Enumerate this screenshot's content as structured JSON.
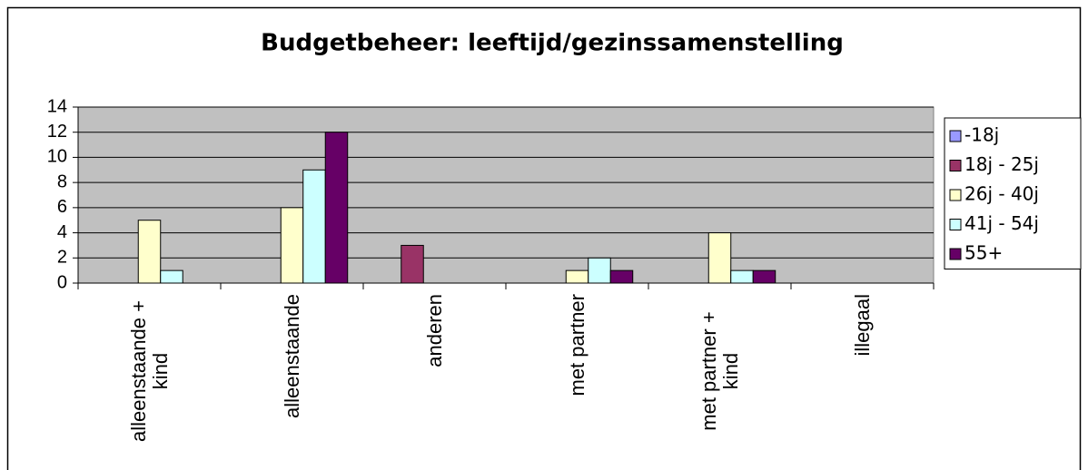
{
  "chart_data": {
    "type": "bar",
    "title": "Budgetbeheer: leeftijd/gezinssamenstelling",
    "categories": [
      "alleenstaande + kind",
      "alleenstaande",
      "anderen",
      "met partner",
      "met partner + kind",
      "illegaal"
    ],
    "series": [
      {
        "name": "-18j",
        "color": "#9999ff",
        "values": [
          0,
          0,
          0,
          0,
          0,
          0
        ]
      },
      {
        "name": "18j - 25j",
        "color": "#993366",
        "values": [
          0,
          0,
          3,
          0,
          0,
          0
        ]
      },
      {
        "name": "26j - 40j",
        "color": "#ffffcc",
        "values": [
          5,
          6,
          0,
          1,
          4,
          0
        ]
      },
      {
        "name": "41j - 54j",
        "color": "#ccffff",
        "values": [
          1,
          9,
          0,
          2,
          1,
          0
        ]
      },
      {
        "name": "55+",
        "color": "#660066",
        "values": [
          0,
          12,
          0,
          1,
          1,
          0
        ]
      }
    ],
    "ylim": [
      0,
      14
    ],
    "yticks": [
      0,
      2,
      4,
      6,
      8,
      10,
      12,
      14
    ],
    "grid": true,
    "legend": "right",
    "plot_background": "#c0c0c0"
  }
}
